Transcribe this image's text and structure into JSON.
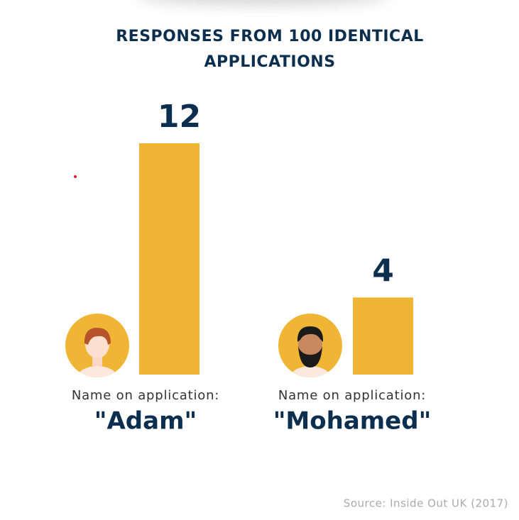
{
  "chart_data": {
    "type": "bar",
    "title": "RESPONSES FROM 100 IDENTICAL APPLICATIONS",
    "category_prefix": "Name on application:",
    "categories": [
      "\"Adam\"",
      "\"Mohamed\""
    ],
    "values": [
      12,
      4
    ],
    "color": "#f0b535",
    "source": "Source: Inside Out UK (2017)"
  }
}
